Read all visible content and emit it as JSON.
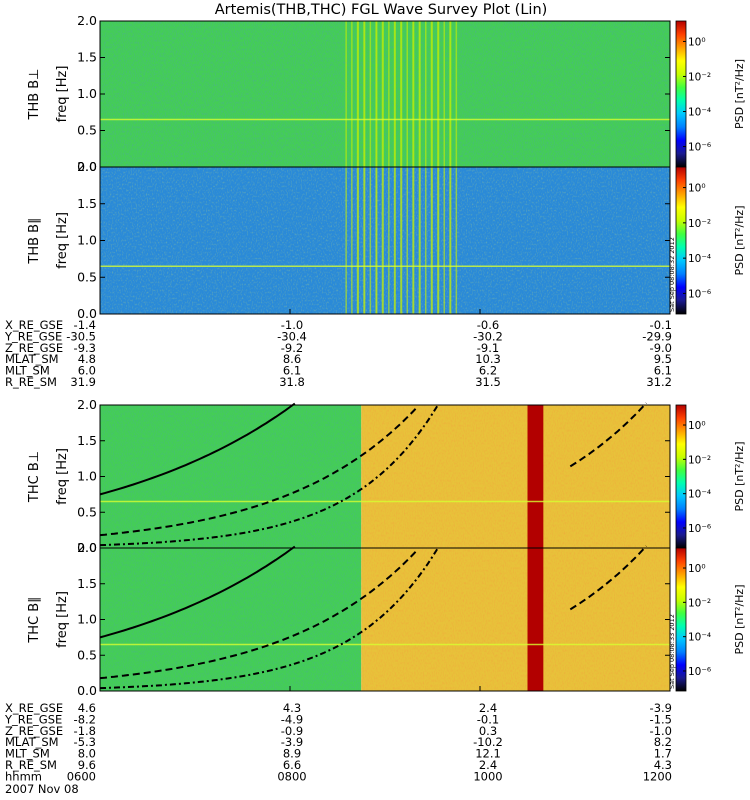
{
  "title": "Artemis(THB,THC) FGL Wave Survey Plot (Lin)",
  "colors": {
    "cmap": [
      "#000000",
      "#1a1a8f",
      "#0000ff",
      "#0080ff",
      "#00c8ff",
      "#00ffb0",
      "#40ff40",
      "#c8ff00",
      "#ffff00",
      "#ffa000",
      "#ff4000",
      "#b40000"
    ],
    "green_bg": "#44ce55",
    "yellow_bg": "#e8c23a",
    "red_band": "#b20000",
    "line_color": "#000000"
  },
  "chart_data": [
    {
      "type": "heatmap",
      "probe_label": "THB B⊥",
      "ylabel": "freq [Hz]",
      "ylim": [
        0,
        2.0
      ],
      "yticks": [
        "0.0",
        "0.5",
        "1.0",
        "1.5",
        "2.0"
      ],
      "cbar_label": "PSD [nT²/Hz]",
      "cbar_ticks": [
        "10⁰",
        "10⁻²",
        "10⁻⁴",
        "10⁻⁶"
      ],
      "stamp": "",
      "background": "green",
      "burst_range_hhmm": [
        "0835",
        "0945"
      ]
    },
    {
      "type": "heatmap",
      "probe_label": "THB B∥",
      "ylabel": "freq [Hz]",
      "ylim": [
        0,
        2.0
      ],
      "yticks": [
        "0.0",
        "0.5",
        "1.0",
        "1.5",
        "2.0"
      ],
      "cbar_label": "PSD [nT²/Hz]",
      "cbar_ticks": [
        "10⁰",
        "10⁻²",
        "10⁻⁴",
        "10⁻⁶"
      ],
      "stamp": "Sat Sep 08:08:32 2012",
      "background": "blue",
      "burst_range_hhmm": [
        "0835",
        "0945"
      ]
    },
    {
      "type": "heatmap",
      "probe_label": "THC B⊥",
      "ylabel": "freq [Hz]",
      "ylim": [
        0,
        2.0
      ],
      "yticks": [
        "0.0",
        "0.5",
        "1.0",
        "1.5",
        "2.0"
      ],
      "cbar_label": "PSD [nT²/Hz]",
      "cbar_ticks": [
        "10⁰",
        "10⁻²",
        "10⁻⁴",
        "10⁻⁶"
      ],
      "stamp": "",
      "background": "green_then_yellow",
      "red_band_hhmm": [
        "1030",
        "1040"
      ]
    },
    {
      "type": "heatmap",
      "probe_label": "THC B∥",
      "ylabel": "freq [Hz]",
      "ylim": [
        0,
        2.0
      ],
      "yticks": [
        "0.0",
        "0.5",
        "1.0",
        "1.5",
        "2.0"
      ],
      "cbar_label": "PSD [nT²/Hz]",
      "cbar_ticks": [
        "10⁰",
        "10⁻²",
        "10⁻⁴",
        "10⁻⁶"
      ],
      "stamp": "Sat Sep 08:08:33 2012",
      "background": "green_then_yellow",
      "red_band_hhmm": [
        "1030",
        "1040"
      ]
    }
  ],
  "ephem_thb": {
    "rows": [
      {
        "label": "X_RE_GSE",
        "values": [
          "-1.4",
          "-1.0",
          "-0.6",
          "-0.1"
        ]
      },
      {
        "label": "Y_RE_GSE",
        "values": [
          "-30.5",
          "-30.4",
          "-30.2",
          "-29.9"
        ]
      },
      {
        "label": "Z_RE_GSE",
        "values": [
          "-9.3",
          "-9.2",
          "-9.1",
          "-9.0"
        ]
      },
      {
        "label": "MLAT_SM",
        "values": [
          "4.8",
          "8.6",
          "10.3",
          "9.5"
        ]
      },
      {
        "label": "MLT_SM",
        "values": [
          "6.0",
          "6.1",
          "6.2",
          "6.1"
        ]
      },
      {
        "label": "R_RE_SM",
        "values": [
          "31.9",
          "31.8",
          "31.5",
          "31.2"
        ]
      }
    ]
  },
  "ephem_thc": {
    "rows": [
      {
        "label": "X_RE_GSE",
        "values": [
          "4.6",
          "4.3",
          "2.4",
          "-3.9"
        ]
      },
      {
        "label": "Y_RE_GSE",
        "values": [
          "-8.2",
          "-4.9",
          "-0.1",
          "-1.5"
        ]
      },
      {
        "label": "Z_RE_GSE",
        "values": [
          "-1.8",
          "-0.9",
          "0.3",
          "-1.0"
        ]
      },
      {
        "label": "MLAT_SM",
        "values": [
          "-5.3",
          "-3.9",
          "-10.2",
          "8.2"
        ]
      },
      {
        "label": "MLT_SM",
        "values": [
          "8.0",
          "8.9",
          "12.1",
          "1.7"
        ]
      },
      {
        "label": "R_RE_SM",
        "values": [
          "9.6",
          "6.6",
          "2.4",
          "4.3"
        ]
      },
      {
        "label": "hhmm",
        "values": [
          "0600",
          "0800",
          "1000",
          "1200"
        ]
      }
    ]
  },
  "date_label": "2007 Nov 08"
}
